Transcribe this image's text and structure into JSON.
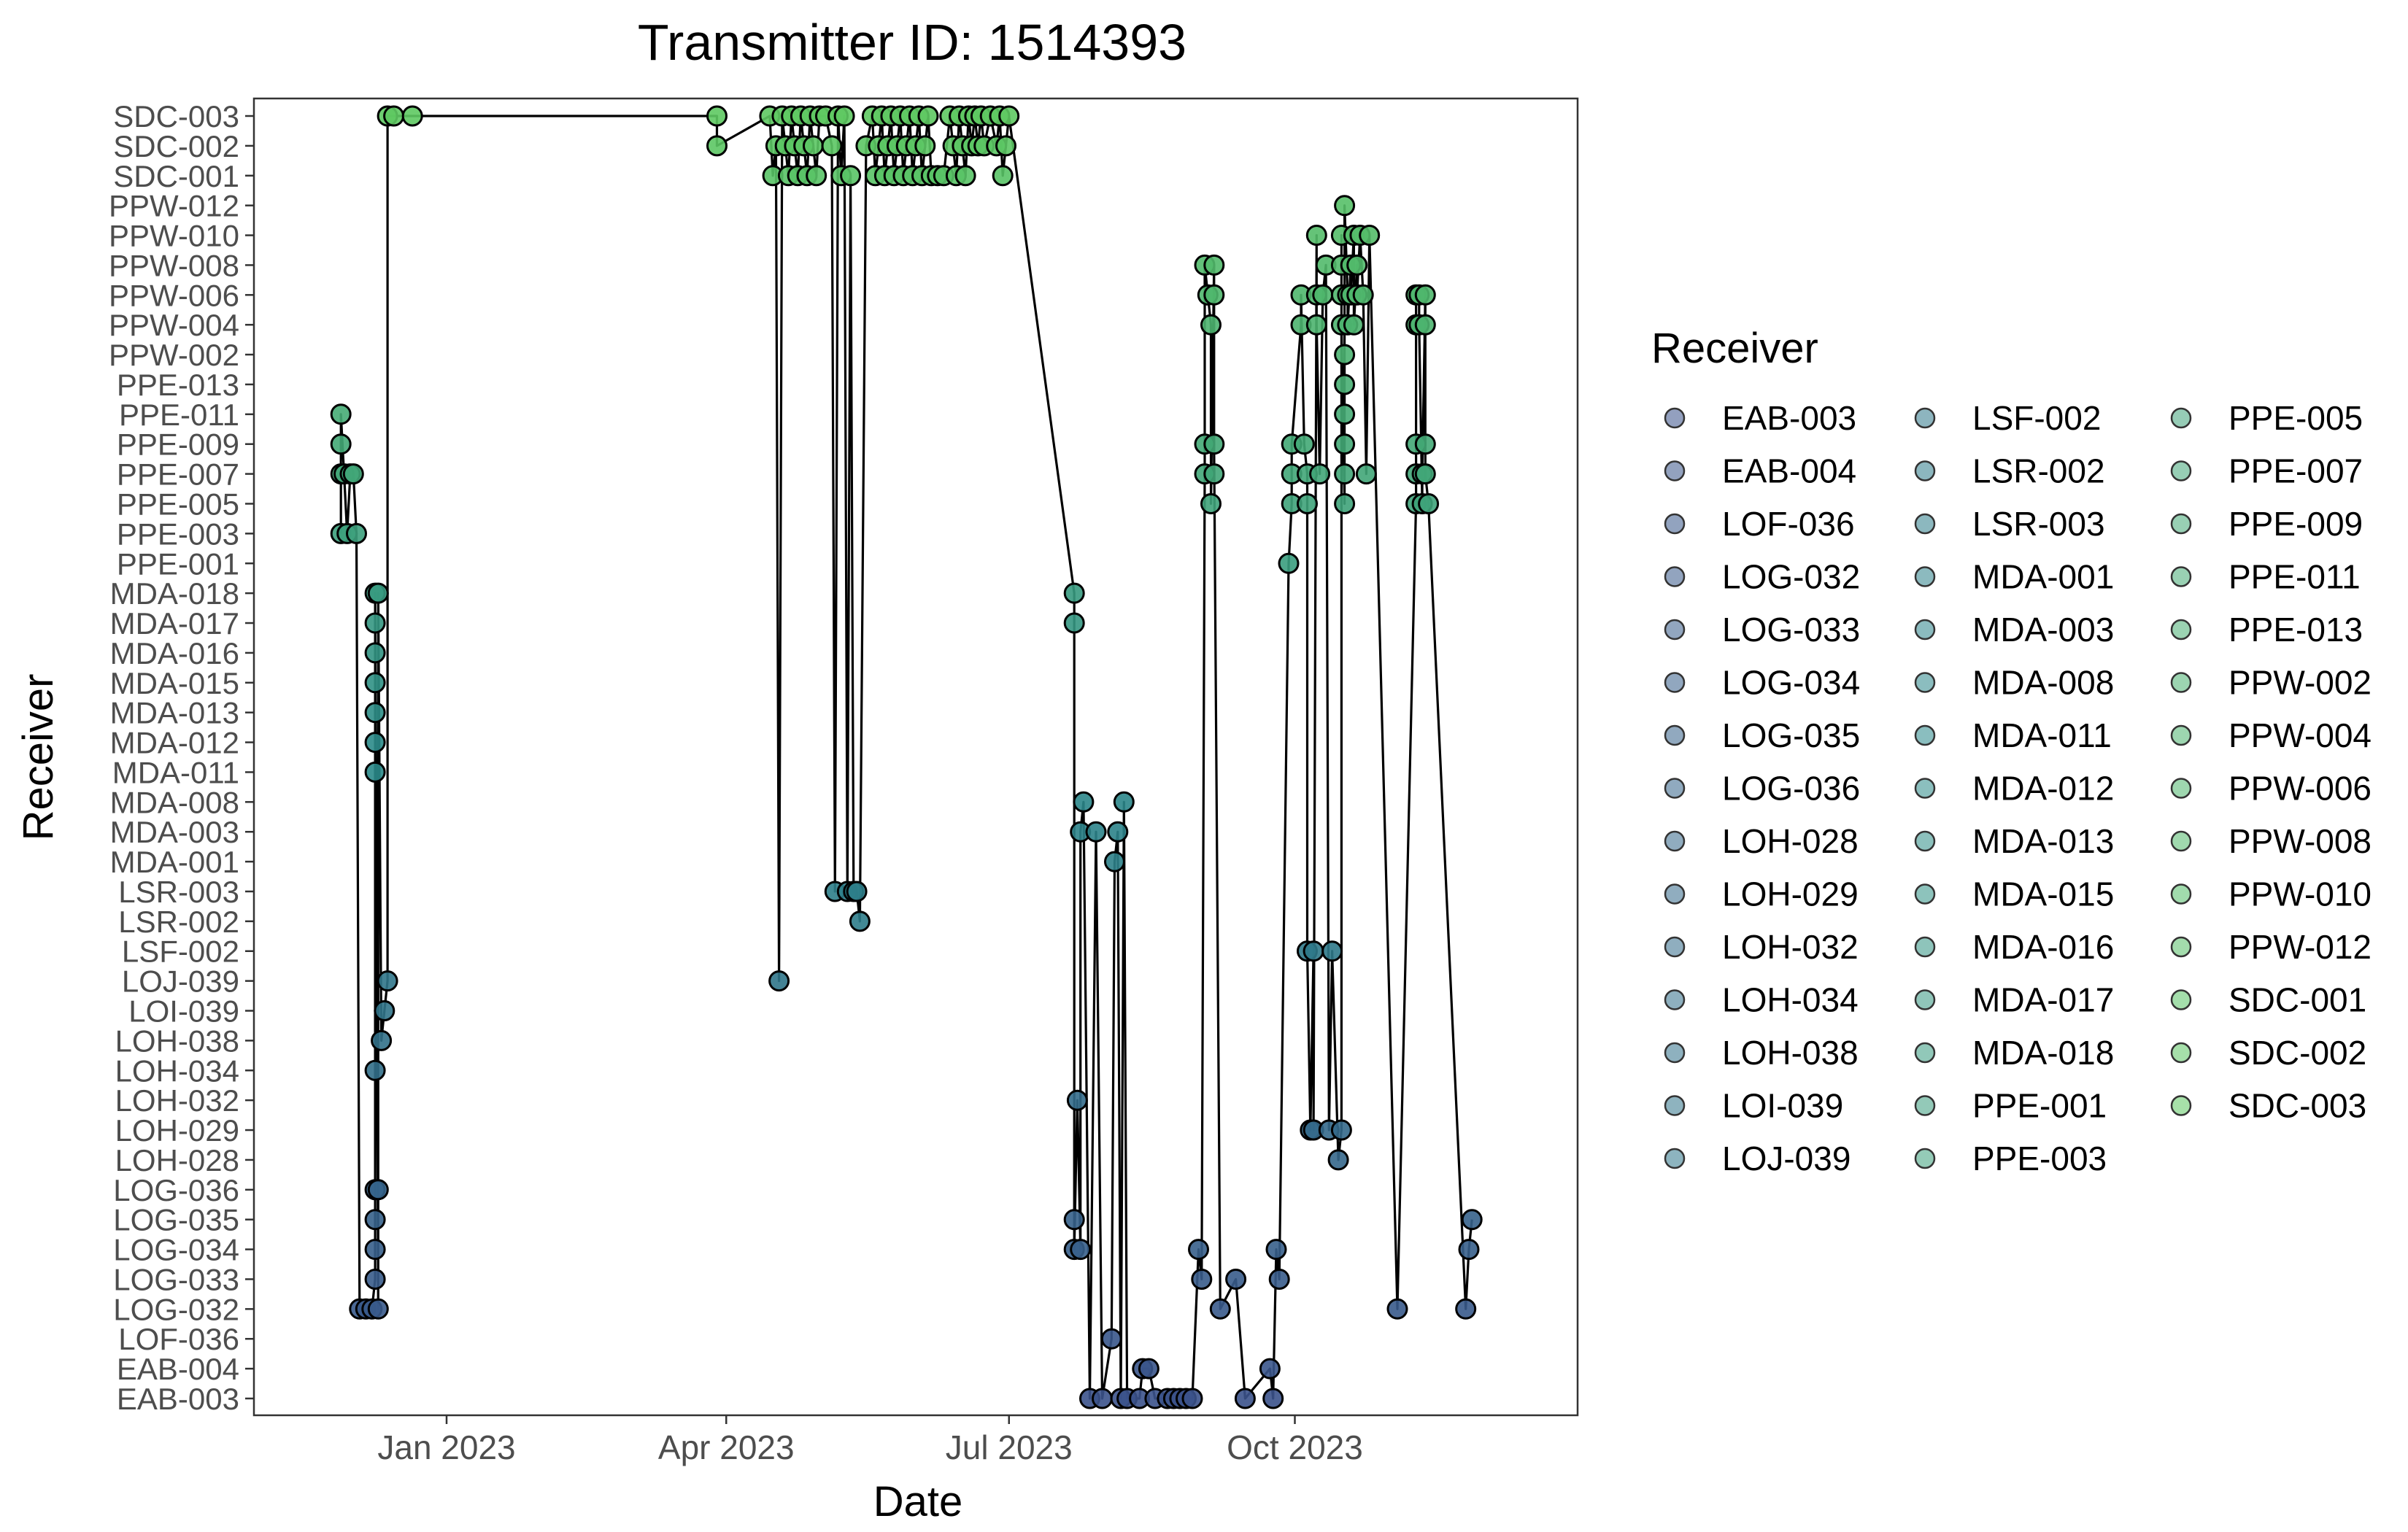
{
  "chart_data": {
    "type": "scatter",
    "title": "Transmitter ID: 1514393",
    "xlabel": "Date",
    "ylabel": "Receiver",
    "xlim": [
      "2022-10-31",
      "2023-12-31"
    ],
    "x_ticks": [
      {
        "date": "2023-01-01",
        "label": "Jan 2023"
      },
      {
        "date": "2023-04-01",
        "label": "Apr 2023"
      },
      {
        "date": "2023-07-01",
        "label": "Jul 2023"
      },
      {
        "date": "2023-10-01",
        "label": "Oct 2023"
      }
    ],
    "y_categories": [
      "EAB-003",
      "EAB-004",
      "LOF-036",
      "LOG-032",
      "LOG-033",
      "LOG-034",
      "LOG-035",
      "LOG-036",
      "LOH-028",
      "LOH-029",
      "LOH-032",
      "LOH-034",
      "LOH-038",
      "LOI-039",
      "LOJ-039",
      "LSF-002",
      "LSR-002",
      "LSR-003",
      "MDA-001",
      "MDA-003",
      "MDA-008",
      "MDA-011",
      "MDA-012",
      "MDA-013",
      "MDA-015",
      "MDA-016",
      "MDA-017",
      "MDA-018",
      "PPE-001",
      "PPE-003",
      "PPE-005",
      "PPE-007",
      "PPE-009",
      "PPE-011",
      "PPE-013",
      "PPW-002",
      "PPW-004",
      "PPW-006",
      "PPW-008",
      "PPW-010",
      "PPW-012",
      "SDC-001",
      "SDC-002",
      "SDC-003"
    ],
    "y_tick_labels": [
      "EAB-003",
      "EAB-004",
      "LOF-036",
      "LOG-032",
      "LOG-033",
      "LOG-034",
      "LOG-035",
      "LOG-036",
      "LOH-028",
      "LOH-029",
      "LOH-032",
      "LOH-034",
      "LOH-038",
      "LOI-039",
      "LOJ-039",
      "LSF-002",
      "LSR-002",
      "LSR-003",
      "MDA-001",
      "MDA-003",
      "MDA-008",
      "MDA-011",
      "MDA-012",
      "MDA-013",
      "MDA-015",
      "MDA-016",
      "MDA-017",
      "MDA-018",
      "PPE-001",
      "PPE-003",
      "PPE-005",
      "PPE-007",
      "PPE-009",
      "PPE-011",
      "PPE-013",
      "PPW-002",
      "PPW-004",
      "PPW-006",
      "PPW-008",
      "PPW-010",
      "PPW-012",
      "SDC-001",
      "SDC-002",
      "SDC-003"
    ],
    "legend": {
      "title": "Receiver",
      "position": "right",
      "entries": [
        "EAB-003",
        "EAB-004",
        "LOF-036",
        "LOG-032",
        "LOG-033",
        "LOG-034",
        "LOG-035",
        "LOG-036",
        "LOH-028",
        "LOH-029",
        "LOH-032",
        "LOH-034",
        "LOH-038",
        "LOI-039",
        "LOJ-039",
        "LSF-002",
        "LSR-002",
        "LSR-003",
        "MDA-001",
        "MDA-003",
        "MDA-008",
        "MDA-011",
        "MDA-012",
        "MDA-013",
        "MDA-015",
        "MDA-016",
        "MDA-017",
        "MDA-018",
        "PPE-001",
        "PPE-003",
        "PPE-005",
        "PPE-007",
        "PPE-009",
        "PPE-011",
        "PPE-013",
        "PPW-002",
        "PPW-004",
        "PPW-006",
        "PPW-008",
        "PPW-010",
        "PPW-012",
        "SDC-001",
        "SDC-002",
        "SDC-003"
      ]
    },
    "grid": false,
    "colors": {
      "low": "#3b528b",
      "mid": "#2a8a8a",
      "high": "#5ec962"
    },
    "points": [
      {
        "date": "2022-11-28",
        "receiver": "PPE-003"
      },
      {
        "date": "2022-11-28",
        "receiver": "PPE-007"
      },
      {
        "date": "2022-11-28",
        "receiver": "PPE-009"
      },
      {
        "date": "2022-11-28",
        "receiver": "PPE-011"
      },
      {
        "date": "2022-11-29",
        "receiver": "PPE-007"
      },
      {
        "date": "2022-11-30",
        "receiver": "PPE-003"
      },
      {
        "date": "2022-12-01",
        "receiver": "PPE-007"
      },
      {
        "date": "2022-12-02",
        "receiver": "PPE-007"
      },
      {
        "date": "2022-12-03",
        "receiver": "PPE-003"
      },
      {
        "date": "2022-12-04",
        "receiver": "LOG-032"
      },
      {
        "date": "2022-12-06",
        "receiver": "LOG-032"
      },
      {
        "date": "2022-12-08",
        "receiver": "LOG-032"
      },
      {
        "date": "2022-12-09",
        "receiver": "LOG-033"
      },
      {
        "date": "2022-12-09",
        "receiver": "LOG-034"
      },
      {
        "date": "2022-12-09",
        "receiver": "LOG-035"
      },
      {
        "date": "2022-12-09",
        "receiver": "LOG-036"
      },
      {
        "date": "2022-12-09",
        "receiver": "LOH-034"
      },
      {
        "date": "2022-12-09",
        "receiver": "MDA-011"
      },
      {
        "date": "2022-12-09",
        "receiver": "MDA-012"
      },
      {
        "date": "2022-12-09",
        "receiver": "MDA-013"
      },
      {
        "date": "2022-12-09",
        "receiver": "MDA-015"
      },
      {
        "date": "2022-12-09",
        "receiver": "MDA-016"
      },
      {
        "date": "2022-12-09",
        "receiver": "MDA-017"
      },
      {
        "date": "2022-12-09",
        "receiver": "MDA-018"
      },
      {
        "date": "2022-12-10",
        "receiver": "LOG-032"
      },
      {
        "date": "2022-12-10",
        "receiver": "LOG-036"
      },
      {
        "date": "2022-12-10",
        "receiver": "MDA-018"
      },
      {
        "date": "2022-12-11",
        "receiver": "LOH-038"
      },
      {
        "date": "2022-12-12",
        "receiver": "LOI-039"
      },
      {
        "date": "2022-12-13",
        "receiver": "LOJ-039"
      },
      {
        "date": "2022-12-13",
        "receiver": "SDC-003"
      },
      {
        "date": "2022-12-15",
        "receiver": "SDC-003"
      },
      {
        "date": "2022-12-21",
        "receiver": "SDC-003"
      },
      {
        "date": "2023-03-29",
        "receiver": "SDC-003"
      },
      {
        "date": "2023-03-29",
        "receiver": "SDC-002"
      },
      {
        "date": "2023-04-15",
        "receiver": "SDC-003"
      },
      {
        "date": "2023-04-16",
        "receiver": "SDC-001"
      },
      {
        "date": "2023-04-17",
        "receiver": "SDC-002"
      },
      {
        "date": "2023-04-18",
        "receiver": "LOJ-039"
      },
      {
        "date": "2023-04-19",
        "receiver": "SDC-003"
      },
      {
        "date": "2023-04-20",
        "receiver": "SDC-002"
      },
      {
        "date": "2023-04-21",
        "receiver": "SDC-001"
      },
      {
        "date": "2023-04-22",
        "receiver": "SDC-003"
      },
      {
        "date": "2023-04-23",
        "receiver": "SDC-002"
      },
      {
        "date": "2023-04-24",
        "receiver": "SDC-001"
      },
      {
        "date": "2023-04-25",
        "receiver": "SDC-003"
      },
      {
        "date": "2023-04-26",
        "receiver": "SDC-002"
      },
      {
        "date": "2023-04-27",
        "receiver": "SDC-001"
      },
      {
        "date": "2023-04-28",
        "receiver": "SDC-003"
      },
      {
        "date": "2023-04-29",
        "receiver": "SDC-002"
      },
      {
        "date": "2023-04-30",
        "receiver": "SDC-001"
      },
      {
        "date": "2023-05-01",
        "receiver": "SDC-003"
      },
      {
        "date": "2023-05-03",
        "receiver": "SDC-003"
      },
      {
        "date": "2023-05-05",
        "receiver": "SDC-002"
      },
      {
        "date": "2023-05-06",
        "receiver": "LSR-003"
      },
      {
        "date": "2023-05-07",
        "receiver": "SDC-003"
      },
      {
        "date": "2023-05-08",
        "receiver": "SDC-001"
      },
      {
        "date": "2023-05-09",
        "receiver": "SDC-003"
      },
      {
        "date": "2023-05-10",
        "receiver": "LSR-003"
      },
      {
        "date": "2023-05-11",
        "receiver": "SDC-001"
      },
      {
        "date": "2023-05-12",
        "receiver": "LSR-003"
      },
      {
        "date": "2023-05-13",
        "receiver": "LSR-003"
      },
      {
        "date": "2023-05-14",
        "receiver": "LSR-002"
      },
      {
        "date": "2023-05-16",
        "receiver": "SDC-002"
      },
      {
        "date": "2023-05-18",
        "receiver": "SDC-003"
      },
      {
        "date": "2023-05-19",
        "receiver": "SDC-001"
      },
      {
        "date": "2023-05-20",
        "receiver": "SDC-002"
      },
      {
        "date": "2023-05-21",
        "receiver": "SDC-003"
      },
      {
        "date": "2023-05-22",
        "receiver": "SDC-001"
      },
      {
        "date": "2023-05-23",
        "receiver": "SDC-002"
      },
      {
        "date": "2023-05-24",
        "receiver": "SDC-003"
      },
      {
        "date": "2023-05-25",
        "receiver": "SDC-001"
      },
      {
        "date": "2023-05-26",
        "receiver": "SDC-002"
      },
      {
        "date": "2023-05-27",
        "receiver": "SDC-003"
      },
      {
        "date": "2023-05-28",
        "receiver": "SDC-001"
      },
      {
        "date": "2023-05-29",
        "receiver": "SDC-002"
      },
      {
        "date": "2023-05-30",
        "receiver": "SDC-003"
      },
      {
        "date": "2023-05-31",
        "receiver": "SDC-001"
      },
      {
        "date": "2023-06-01",
        "receiver": "SDC-002"
      },
      {
        "date": "2023-06-02",
        "receiver": "SDC-003"
      },
      {
        "date": "2023-06-03",
        "receiver": "SDC-001"
      },
      {
        "date": "2023-06-04",
        "receiver": "SDC-002"
      },
      {
        "date": "2023-06-05",
        "receiver": "SDC-003"
      },
      {
        "date": "2023-06-06",
        "receiver": "SDC-001"
      },
      {
        "date": "2023-06-08",
        "receiver": "SDC-001"
      },
      {
        "date": "2023-06-10",
        "receiver": "SDC-001"
      },
      {
        "date": "2023-06-12",
        "receiver": "SDC-003"
      },
      {
        "date": "2023-06-13",
        "receiver": "SDC-002"
      },
      {
        "date": "2023-06-14",
        "receiver": "SDC-001"
      },
      {
        "date": "2023-06-15",
        "receiver": "SDC-003"
      },
      {
        "date": "2023-06-16",
        "receiver": "SDC-002"
      },
      {
        "date": "2023-06-17",
        "receiver": "SDC-001"
      },
      {
        "date": "2023-06-18",
        "receiver": "SDC-003"
      },
      {
        "date": "2023-06-19",
        "receiver": "SDC-002"
      },
      {
        "date": "2023-06-20",
        "receiver": "SDC-003"
      },
      {
        "date": "2023-06-21",
        "receiver": "SDC-002"
      },
      {
        "date": "2023-06-22",
        "receiver": "SDC-003"
      },
      {
        "date": "2023-06-23",
        "receiver": "SDC-002"
      },
      {
        "date": "2023-06-25",
        "receiver": "SDC-003"
      },
      {
        "date": "2023-06-27",
        "receiver": "SDC-002"
      },
      {
        "date": "2023-06-28",
        "receiver": "SDC-003"
      },
      {
        "date": "2023-06-29",
        "receiver": "SDC-001"
      },
      {
        "date": "2023-06-30",
        "receiver": "SDC-002"
      },
      {
        "date": "2023-07-01",
        "receiver": "SDC-003"
      },
      {
        "date": "2023-07-22",
        "receiver": "MDA-018"
      },
      {
        "date": "2023-07-22",
        "receiver": "MDA-017"
      },
      {
        "date": "2023-07-22",
        "receiver": "LOG-035"
      },
      {
        "date": "2023-07-22",
        "receiver": "LOG-034"
      },
      {
        "date": "2023-07-23",
        "receiver": "LOH-032"
      },
      {
        "date": "2023-07-24",
        "receiver": "LOG-034"
      },
      {
        "date": "2023-07-24",
        "receiver": "MDA-003"
      },
      {
        "date": "2023-07-25",
        "receiver": "MDA-008"
      },
      {
        "date": "2023-07-27",
        "receiver": "EAB-003"
      },
      {
        "date": "2023-07-29",
        "receiver": "MDA-003"
      },
      {
        "date": "2023-07-31",
        "receiver": "EAB-003"
      },
      {
        "date": "2023-08-03",
        "receiver": "LOF-036"
      },
      {
        "date": "2023-08-04",
        "receiver": "MDA-001"
      },
      {
        "date": "2023-08-05",
        "receiver": "MDA-003"
      },
      {
        "date": "2023-08-06",
        "receiver": "EAB-003"
      },
      {
        "date": "2023-08-07",
        "receiver": "MDA-008"
      },
      {
        "date": "2023-08-08",
        "receiver": "EAB-003"
      },
      {
        "date": "2023-08-12",
        "receiver": "EAB-003"
      },
      {
        "date": "2023-08-13",
        "receiver": "EAB-004"
      },
      {
        "date": "2023-08-15",
        "receiver": "EAB-004"
      },
      {
        "date": "2023-08-17",
        "receiver": "EAB-003"
      },
      {
        "date": "2023-08-21",
        "receiver": "EAB-003"
      },
      {
        "date": "2023-08-23",
        "receiver": "EAB-003"
      },
      {
        "date": "2023-08-25",
        "receiver": "EAB-003"
      },
      {
        "date": "2023-08-27",
        "receiver": "EAB-003"
      },
      {
        "date": "2023-08-29",
        "receiver": "EAB-003"
      },
      {
        "date": "2023-08-31",
        "receiver": "LOG-034"
      },
      {
        "date": "2023-09-01",
        "receiver": "LOG-033"
      },
      {
        "date": "2023-09-02",
        "receiver": "PPE-007"
      },
      {
        "date": "2023-09-02",
        "receiver": "PPE-009"
      },
      {
        "date": "2023-09-02",
        "receiver": "PPW-008"
      },
      {
        "date": "2023-09-03",
        "receiver": "PPW-006"
      },
      {
        "date": "2023-09-04",
        "receiver": "PPW-004"
      },
      {
        "date": "2023-09-04",
        "receiver": "PPE-005"
      },
      {
        "date": "2023-09-05",
        "receiver": "PPW-008"
      },
      {
        "date": "2023-09-05",
        "receiver": "PPW-006"
      },
      {
        "date": "2023-09-05",
        "receiver": "PPE-007"
      },
      {
        "date": "2023-09-05",
        "receiver": "PPE-009"
      },
      {
        "date": "2023-09-07",
        "receiver": "LOG-032"
      },
      {
        "date": "2023-09-12",
        "receiver": "LOG-033"
      },
      {
        "date": "2023-09-15",
        "receiver": "EAB-003"
      },
      {
        "date": "2023-09-23",
        "receiver": "EAB-004"
      },
      {
        "date": "2023-09-24",
        "receiver": "EAB-003"
      },
      {
        "date": "2023-09-25",
        "receiver": "LOG-034"
      },
      {
        "date": "2023-09-26",
        "receiver": "LOG-033"
      },
      {
        "date": "2023-09-29",
        "receiver": "PPE-001"
      },
      {
        "date": "2023-09-30",
        "receiver": "PPE-005"
      },
      {
        "date": "2023-09-30",
        "receiver": "PPE-007"
      },
      {
        "date": "2023-09-30",
        "receiver": "PPE-009"
      },
      {
        "date": "2023-10-03",
        "receiver": "PPW-004"
      },
      {
        "date": "2023-10-03",
        "receiver": "PPW-006"
      },
      {
        "date": "2023-10-04",
        "receiver": "PPE-009"
      },
      {
        "date": "2023-10-05",
        "receiver": "PPE-007"
      },
      {
        "date": "2023-10-05",
        "receiver": "PPE-005"
      },
      {
        "date": "2023-10-05",
        "receiver": "LSF-002"
      },
      {
        "date": "2023-10-06",
        "receiver": "LOH-029"
      },
      {
        "date": "2023-10-07",
        "receiver": "LSF-002"
      },
      {
        "date": "2023-10-07",
        "receiver": "LOH-029"
      },
      {
        "date": "2023-10-08",
        "receiver": "PPW-010"
      },
      {
        "date": "2023-10-08",
        "receiver": "PPW-006"
      },
      {
        "date": "2023-10-08",
        "receiver": "PPW-004"
      },
      {
        "date": "2023-10-09",
        "receiver": "PPE-007"
      },
      {
        "date": "2023-10-10",
        "receiver": "PPW-006"
      },
      {
        "date": "2023-10-11",
        "receiver": "PPW-008"
      },
      {
        "date": "2023-10-12",
        "receiver": "LOH-029"
      },
      {
        "date": "2023-10-13",
        "receiver": "LSF-002"
      },
      {
        "date": "2023-10-15",
        "receiver": "LOH-028"
      },
      {
        "date": "2023-10-16",
        "receiver": "LOH-029"
      },
      {
        "date": "2023-10-16",
        "receiver": "PPW-010"
      },
      {
        "date": "2023-10-16",
        "receiver": "PPW-008"
      },
      {
        "date": "2023-10-16",
        "receiver": "PPW-006"
      },
      {
        "date": "2023-10-16",
        "receiver": "PPW-004"
      },
      {
        "date": "2023-10-17",
        "receiver": "PPE-005"
      },
      {
        "date": "2023-10-17",
        "receiver": "PPE-007"
      },
      {
        "date": "2023-10-17",
        "receiver": "PPE-009"
      },
      {
        "date": "2023-10-17",
        "receiver": "PPE-011"
      },
      {
        "date": "2023-10-17",
        "receiver": "PPE-013"
      },
      {
        "date": "2023-10-17",
        "receiver": "PPW-002"
      },
      {
        "date": "2023-10-17",
        "receiver": "PPW-012"
      },
      {
        "date": "2023-10-18",
        "receiver": "PPW-006"
      },
      {
        "date": "2023-10-18",
        "receiver": "PPW-004"
      },
      {
        "date": "2023-10-19",
        "receiver": "PPW-008"
      },
      {
        "date": "2023-10-19",
        "receiver": "PPW-006"
      },
      {
        "date": "2023-10-20",
        "receiver": "PPW-010"
      },
      {
        "date": "2023-10-20",
        "receiver": "PPW-004"
      },
      {
        "date": "2023-10-21",
        "receiver": "PPW-008"
      },
      {
        "date": "2023-10-21",
        "receiver": "PPW-006"
      },
      {
        "date": "2023-10-22",
        "receiver": "PPW-010"
      },
      {
        "date": "2023-10-23",
        "receiver": "PPW-006"
      },
      {
        "date": "2023-10-24",
        "receiver": "PPE-007"
      },
      {
        "date": "2023-10-25",
        "receiver": "PPW-010"
      },
      {
        "date": "2023-11-03",
        "receiver": "LOG-032"
      },
      {
        "date": "2023-11-09",
        "receiver": "PPE-005"
      },
      {
        "date": "2023-11-09",
        "receiver": "PPE-007"
      },
      {
        "date": "2023-11-09",
        "receiver": "PPE-009"
      },
      {
        "date": "2023-11-09",
        "receiver": "PPW-004"
      },
      {
        "date": "2023-11-09",
        "receiver": "PPW-006"
      },
      {
        "date": "2023-11-10",
        "receiver": "PPW-006"
      },
      {
        "date": "2023-11-10",
        "receiver": "PPW-004"
      },
      {
        "date": "2023-11-11",
        "receiver": "PPE-005"
      },
      {
        "date": "2023-11-11",
        "receiver": "PPE-007"
      },
      {
        "date": "2023-11-12",
        "receiver": "PPW-006"
      },
      {
        "date": "2023-11-12",
        "receiver": "PPW-004"
      },
      {
        "date": "2023-11-12",
        "receiver": "PPE-009"
      },
      {
        "date": "2023-11-12",
        "receiver": "PPE-007"
      },
      {
        "date": "2023-11-13",
        "receiver": "PPE-005"
      },
      {
        "date": "2023-11-25",
        "receiver": "LOG-032"
      },
      {
        "date": "2023-11-26",
        "receiver": "LOG-034"
      },
      {
        "date": "2023-11-27",
        "receiver": "LOG-035"
      }
    ]
  }
}
